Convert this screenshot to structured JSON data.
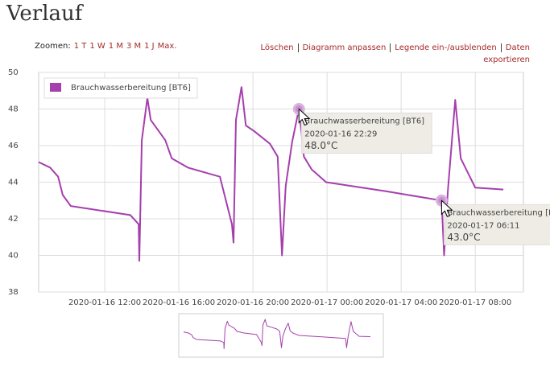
{
  "header": {
    "title": "Verlauf"
  },
  "toolbar": {
    "zoom_label": "Zoomen:",
    "zoom_options": [
      "1 T",
      "1 W",
      "1 M",
      "3 M",
      "1 J",
      "Max."
    ],
    "actions": [
      "Löschen",
      "Diagramm anpassen",
      "Legende ein-/ausblenden",
      "Daten exportieren"
    ]
  },
  "chart_data": {
    "type": "line",
    "x": [
      "2020-01-16 08:26",
      "2020-01-16 09:03",
      "2020-01-16 09:29",
      "2020-01-16 09:44",
      "2020-01-16 10:10",
      "2020-01-16 13:23",
      "2020-01-16 13:50",
      "2020-01-16 13:52",
      "2020-01-16 14:00",
      "2020-01-16 14:18",
      "2020-01-16 14:29",
      "2020-01-16 15:16",
      "2020-01-16 15:37",
      "2020-01-16 16:29",
      "2020-01-16 18:13",
      "2020-01-16 18:31",
      "2020-01-16 18:52",
      "2020-01-16 18:57",
      "2020-01-16 19:05",
      "2020-01-16 19:23",
      "2020-01-16 19:37",
      "2020-01-16 20:03",
      "2020-01-16 20:55",
      "2020-01-16 21:20",
      "2020-01-16 21:34",
      "2020-01-16 21:46",
      "2020-01-16 22:07",
      "2020-01-16 22:29",
      "2020-01-16 22:45",
      "2020-01-16 23:10",
      "2020-01-16 23:57",
      "2020-01-17 03:13",
      "2020-01-17 06:11",
      "2020-01-17 06:19",
      "2020-01-17 06:31",
      "2020-01-17 06:55",
      "2020-01-17 07:13",
      "2020-01-17 08:00",
      "2020-01-17 09:31"
    ],
    "series": [
      {
        "name": "Brauchwasserbereitung [BT6]",
        "color": "#a53fad",
        "values": [
          45.1,
          44.8,
          44.3,
          43.3,
          42.7,
          42.2,
          41.7,
          39.7,
          46.3,
          48.6,
          47.4,
          46.3,
          45.3,
          44.8,
          44.3,
          43.1,
          41.7,
          40.7,
          47.4,
          49.2,
          47.1,
          46.8,
          46.1,
          45.4,
          40.0,
          43.8,
          46.2,
          48.0,
          45.4,
          44.7,
          44.0,
          43.5,
          43.0,
          40.0,
          43.5,
          48.5,
          45.3,
          43.7,
          43.6
        ]
      }
    ],
    "xlim": [
      "2020-01-16 08:26",
      "2020-01-17 10:36"
    ],
    "xticks": [
      "2020-01-16 12:00",
      "2020-01-16 16:00",
      "2020-01-16 20:00",
      "2020-01-17 00:00",
      "2020-01-17 04:00",
      "2020-01-17 08:00"
    ],
    "ylim": [
      38,
      50
    ],
    "yticks": [
      38,
      40,
      42,
      44,
      46,
      48,
      50
    ],
    "grid": true,
    "tooltips": [
      {
        "x": "2020-01-16 22:29",
        "value": 48,
        "value_label": "48.0°C"
      },
      {
        "x": "2020-01-17 06:11",
        "value": 43,
        "value_label": "43.0°C"
      }
    ]
  }
}
